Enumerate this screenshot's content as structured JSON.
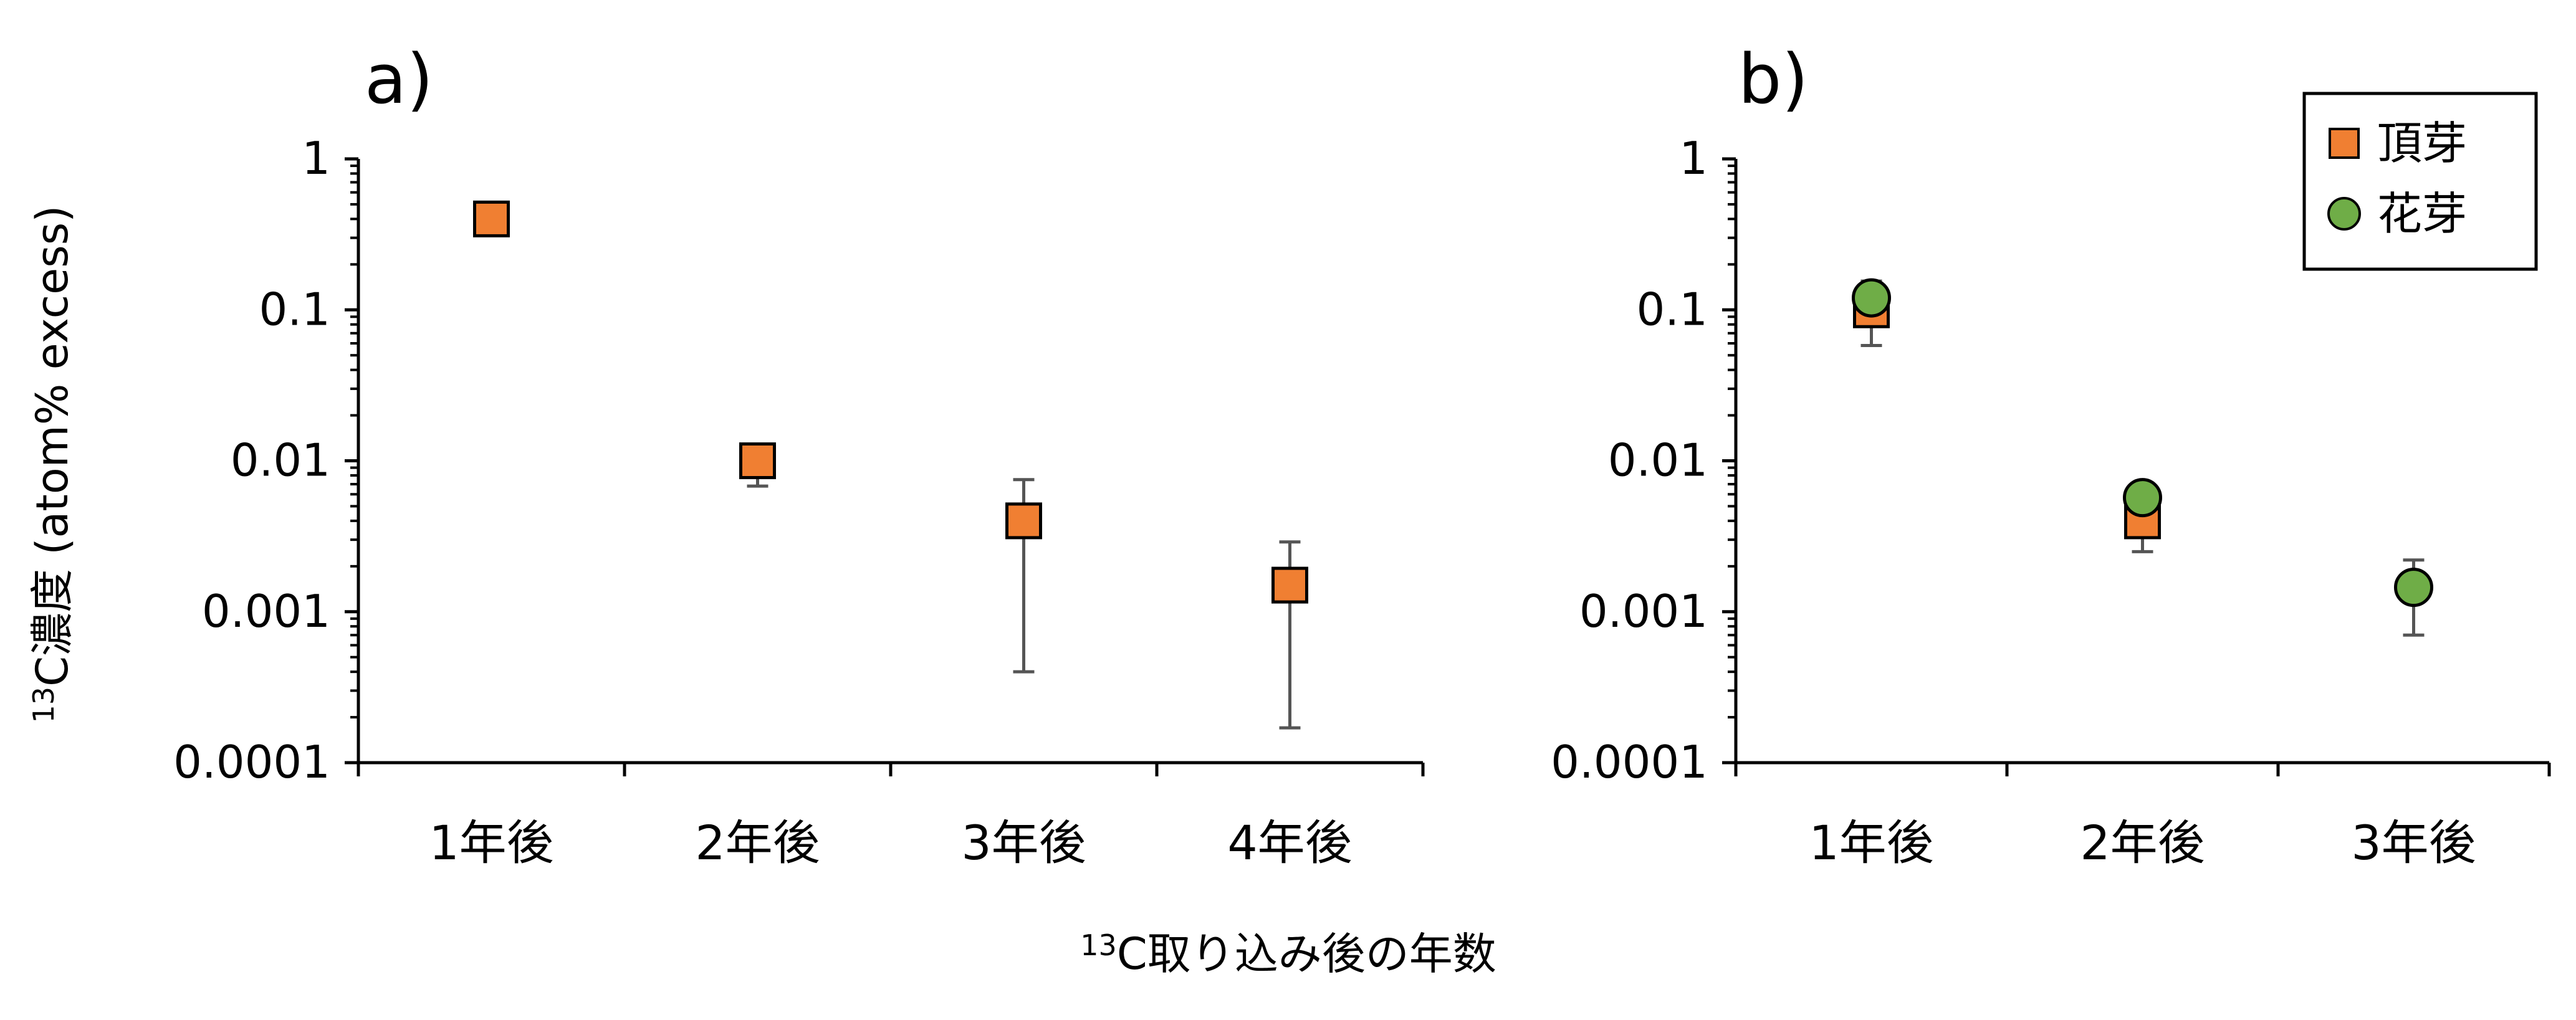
{
  "figure": {
    "ylabel_sup": "13",
    "ylabel_main": "C濃度 (atom% excess)",
    "xlabel_sup": "13",
    "xlabel_main": "C取り込み後の年数"
  },
  "legend": {
    "items": [
      {
        "label": "頂芽",
        "marker": "square",
        "color": "#F07F32"
      },
      {
        "label": "花芽",
        "marker": "circle",
        "color": "#6FAD47"
      }
    ]
  },
  "colors": {
    "terminal_bud": "#F07F32",
    "flower_bud": "#6FAD47",
    "error_bar": "#555555",
    "axis": "#000000"
  },
  "chart_data": [
    {
      "panel": "a)",
      "type": "scatter",
      "yscale": "log",
      "ylim": [
        0.0001,
        1
      ],
      "yticks": [
        "1",
        "0.1",
        "0.01",
        "0.001",
        "0.0001"
      ],
      "categories": [
        "1年後",
        "2年後",
        "3年後",
        "4年後"
      ],
      "series": [
        {
          "name": "頂芽",
          "marker": "square",
          "values": [
            0.4,
            0.01,
            0.004,
            0.0015
          ],
          "error_low": [
            null,
            0.0068,
            0.0004,
            0.00017
          ],
          "error_high": [
            null,
            null,
            0.0075,
            0.0029
          ]
        }
      ]
    },
    {
      "panel": "b)",
      "type": "scatter",
      "yscale": "log",
      "ylim": [
        0.0001,
        1
      ],
      "yticks": [
        "1",
        "0.1",
        "0.01",
        "0.001",
        "0.0001"
      ],
      "categories": [
        "1年後",
        "2年後",
        "3年後"
      ],
      "legend_position": "top-right",
      "series": [
        {
          "name": "頂芽",
          "marker": "square",
          "values": [
            0.1,
            0.004,
            null
          ],
          "error_low": [
            0.058,
            0.0025,
            null
          ],
          "error_high": [
            null,
            null,
            null
          ]
        },
        {
          "name": "花芽",
          "marker": "circle",
          "values": [
            0.12,
            0.0057,
            0.00145
          ],
          "error_low": [
            null,
            null,
            0.0007
          ],
          "error_high": [
            0.155,
            null,
            0.0022
          ]
        }
      ]
    }
  ]
}
